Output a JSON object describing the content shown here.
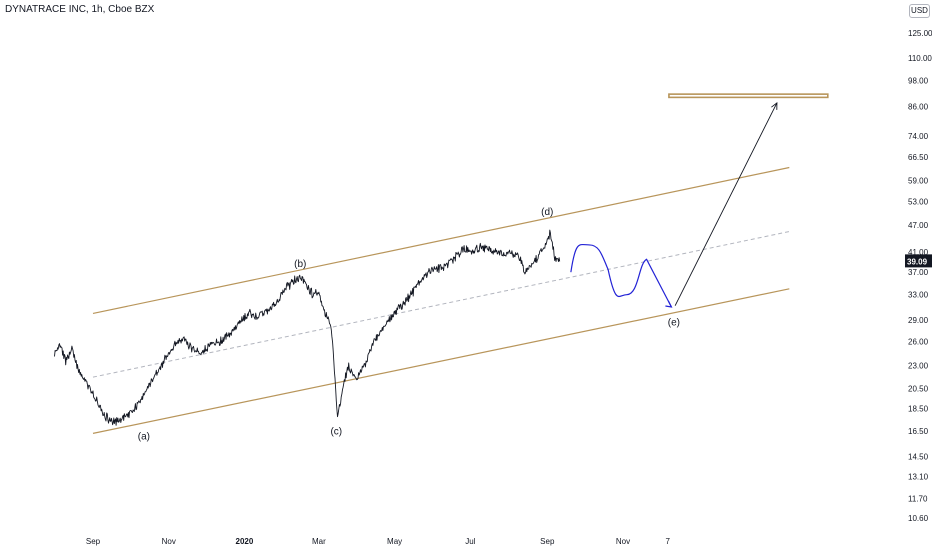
{
  "header": {
    "title": "DYNATRACE INC, 1h, Cboe BZX",
    "currency": "USD"
  },
  "chart_data": {
    "type": "line",
    "title": "DYNATRACE INC, 1h, Cboe BZX",
    "xlabel": "",
    "ylabel": "",
    "y_scale": "log",
    "ylim": [
      10.2,
      131
    ],
    "x_tick_labels": [
      "Sep",
      "Nov",
      "2020",
      "Mar",
      "May",
      "Jul",
      "Sep",
      "Nov",
      "7"
    ],
    "y_tick_labels": [
      "125.00",
      "110.00",
      "98.00",
      "86.00",
      "74.00",
      "66.50",
      "59.00",
      "53.00",
      "47.00",
      "41.00",
      "37.00",
      "33.00",
      "29.00",
      "26.00",
      "23.00",
      "20.50",
      "18.50",
      "16.50",
      "14.50",
      "13.10",
      "11.70",
      "10.60"
    ],
    "last_price": "39.09",
    "last_price_color": "#131722",
    "series": [
      {
        "type": "price",
        "color": "#131722",
        "x": [
          "2019-08-01",
          "2019-08-05",
          "2019-08-10",
          "2019-08-15",
          "2019-08-20",
          "2019-08-27",
          "2019-09-01",
          "2019-09-07",
          "2019-09-13",
          "2019-09-22",
          "2019-09-30",
          "2019-10-08",
          "2019-10-15",
          "2019-10-22",
          "2019-10-28",
          "2019-11-05",
          "2019-11-12",
          "2019-11-20",
          "2019-11-27",
          "2019-12-05",
          "2019-12-12",
          "2019-12-20",
          "2019-12-28",
          "2020-01-04",
          "2020-01-12",
          "2020-01-20",
          "2020-01-27",
          "2020-02-03",
          "2020-02-10",
          "2020-02-16",
          "2020-02-20",
          "2020-02-25",
          "2020-03-01",
          "2020-03-06",
          "2020-03-11",
          "2020-03-14",
          "2020-03-16",
          "2020-03-20",
          "2020-03-25",
          "2020-03-31",
          "2020-04-07",
          "2020-04-14",
          "2020-04-22",
          "2020-04-30",
          "2020-05-08",
          "2020-05-16",
          "2020-05-24",
          "2020-06-01",
          "2020-06-09",
          "2020-06-17",
          "2020-06-25",
          "2020-07-02",
          "2020-07-10",
          "2020-07-18",
          "2020-07-26",
          "2020-08-03",
          "2020-08-10",
          "2020-08-14",
          "2020-08-20",
          "2020-08-27",
          "2020-09-01",
          "2020-09-03",
          "2020-09-07",
          "2020-09-11"
        ],
        "y": [
          24.5,
          26.0,
          23.5,
          25.0,
          22.5,
          21.0,
          20.0,
          18.5,
          17.5,
          17.3,
          18.0,
          19.0,
          20.5,
          22.0,
          23.5,
          25.5,
          26.5,
          25.0,
          24.5,
          25.5,
          26.0,
          27.0,
          28.5,
          30.0,
          29.5,
          30.5,
          32.0,
          34.0,
          35.5,
          36.0,
          34.5,
          33.0,
          33.5,
          30.0,
          28.0,
          21.5,
          17.5,
          20.5,
          23.0,
          21.5,
          23.0,
          26.0,
          28.0,
          30.0,
          31.5,
          33.5,
          36.0,
          37.5,
          38.0,
          39.5,
          41.5,
          41.0,
          42.0,
          41.5,
          40.5,
          41.0,
          40.0,
          37.0,
          38.5,
          41.0,
          43.0,
          45.5,
          40.0,
          39.09
        ]
      }
    ],
    "projection": {
      "color": "#2323d6",
      "x": [
        "2020-09-20",
        "2020-10-05",
        "2020-10-20",
        "2020-11-04",
        "2020-11-20",
        "2020-12-10"
      ],
      "y": [
        37.0,
        42.5,
        37.5,
        33.0,
        39.5,
        31.0
      ]
    },
    "target_arrow": {
      "color": "#131722",
      "x": [
        "2020-12-13",
        "2021-03-05"
      ],
      "y": [
        31.2,
        87.5
      ]
    },
    "channel": {
      "color": "#b8955a",
      "mid_color": "#b2b5be",
      "x": [
        "2019-09-01",
        "2021-03-15"
      ],
      "upper": [
        30.0,
        63.0
      ],
      "lower": [
        16.3,
        34.0
      ],
      "middle": [
        21.7,
        45.5
      ]
    },
    "target_zone": {
      "color": "#b8955a",
      "x": [
        "2020-12-08",
        "2021-04-15"
      ],
      "y": [
        90.0,
        91.5
      ]
    },
    "wave_labels": [
      {
        "text": "(a)",
        "x": "2019-10-12",
        "y": 15.8
      },
      {
        "text": "(b)",
        "x": "2020-02-15",
        "y": 38.0
      },
      {
        "text": "(c)",
        "x": "2020-03-15",
        "y": 16.2
      },
      {
        "text": "(d)",
        "x": "2020-09-01",
        "y": 49.5
      },
      {
        "text": "(e)",
        "x": "2020-12-12",
        "y": 28.2
      }
    ],
    "grid": false,
    "legend": "none"
  }
}
